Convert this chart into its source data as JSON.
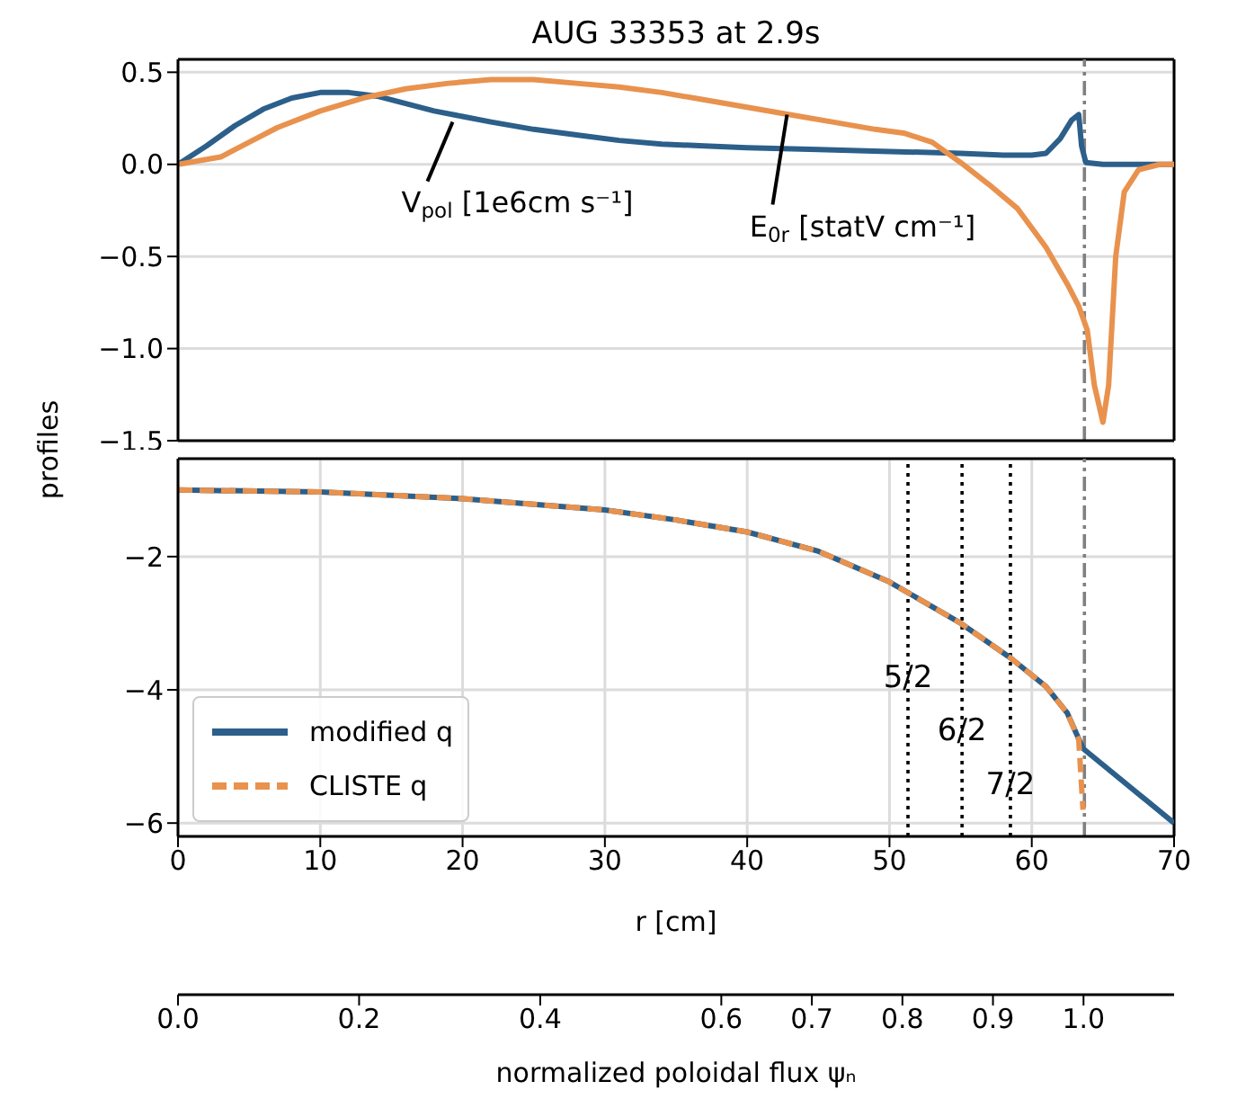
{
  "chart_data": [
    {
      "type": "line",
      "title": "AUG 33353 at 2.9s",
      "ylabel": "profiles",
      "xlim": [
        0,
        70
      ],
      "xticks": [
        0,
        10,
        20,
        30,
        40,
        50,
        60,
        70
      ],
      "ylim": [
        -1.5,
        0.57
      ],
      "yticks": [
        {
          "value": -1.5,
          "label": "−1.5"
        },
        {
          "value": -1,
          "label": "−1.0"
        },
        {
          "value": -0.5,
          "label": "−0.5"
        },
        {
          "value": 0,
          "label": "0.0"
        },
        {
          "value": 0.5,
          "label": "0.5"
        }
      ],
      "tick_labels": "y",
      "grid": true,
      "series": [
        {
          "color": "#2c5f8a",
          "x": [
            0,
            2,
            4,
            6,
            8,
            10,
            12,
            14,
            16,
            18,
            20,
            22,
            25,
            28,
            31,
            34,
            37,
            40,
            45,
            50,
            55,
            58,
            60,
            61,
            62,
            62.8,
            63.3,
            63.5,
            63.8,
            65,
            70
          ],
          "values": [
            0,
            0.1,
            0.21,
            0.3,
            0.36,
            0.39,
            0.39,
            0.37,
            0.33,
            0.29,
            0.26,
            0.23,
            0.19,
            0.16,
            0.13,
            0.11,
            0.1,
            0.09,
            0.08,
            0.07,
            0.06,
            0.05,
            0.05,
            0.06,
            0.14,
            0.24,
            0.27,
            0.1,
            0.01,
            0,
            0
          ]
        },
        {
          "color": "#e8924e",
          "x": [
            0,
            3,
            5,
            7,
            10,
            13,
            16,
            19,
            22,
            25,
            28,
            31,
            34,
            37,
            40,
            43,
            46,
            49,
            51,
            53,
            55,
            57,
            59,
            61,
            62.5,
            63.3,
            63.9,
            64.4,
            65,
            65.4,
            65.9,
            66.5,
            67.5,
            69,
            70
          ],
          "values": [
            0,
            0.04,
            0.12,
            0.2,
            0.29,
            0.36,
            0.41,
            0.44,
            0.46,
            0.46,
            0.44,
            0.42,
            0.39,
            0.35,
            0.31,
            0.27,
            0.23,
            0.19,
            0.17,
            0.12,
            0.01,
            -0.11,
            -0.24,
            -0.45,
            -0.65,
            -0.77,
            -0.9,
            -1.2,
            -1.4,
            -1.2,
            -0.5,
            -0.15,
            -0.03,
            0,
            0
          ]
        }
      ],
      "annotations": [
        {
          "text": "V$_{pol}$ [1e6cm s⁻¹]",
          "x": 19.3,
          "y": 0.23
        },
        {
          "text": "E$_{0r}$ [statV cm⁻¹]",
          "x": 42.8,
          "y": 0.27
        }
      ],
      "ref_lines": [
        {
          "axis": "x",
          "value": 63.7,
          "color": "#808080",
          "line_style": "dashed"
        }
      ]
    },
    {
      "type": "line",
      "xlabel": "r  [cm]",
      "xlim": [
        0,
        70
      ],
      "xticks": [
        0,
        10,
        20,
        30,
        40,
        50,
        60,
        70
      ],
      "ylim": [
        -6.2,
        -0.53
      ],
      "yticks": [
        {
          "value": -2,
          "label": "−2"
        },
        {
          "value": -4,
          "label": "−4"
        },
        {
          "value": -6,
          "label": "−6"
        }
      ],
      "grid": true,
      "legend": "bottom left",
      "x2label": "normalized poloidal flux ψₙ",
      "x2lim": [
        0,
        1.1
      ],
      "x2ticks": [
        {
          "value": 0,
          "label": "0.0"
        },
        {
          "value": 0.2,
          "label": "0.2"
        },
        {
          "value": 0.4,
          "label": "0.4"
        },
        {
          "value": 0.6,
          "label": "0.6"
        },
        {
          "value": 0.7,
          "label": "0.7"
        },
        {
          "value": 0.8,
          "label": "0.8"
        },
        {
          "value": 0.9,
          "label": "0.9"
        },
        {
          "value": 1,
          "label": "1.0"
        }
      ],
      "series": [
        {
          "name": "modified q",
          "color": "#2c5f8a",
          "line_style": "solid",
          "x": [
            0,
            10,
            20,
            30,
            35,
            40,
            45,
            50,
            55,
            58.5,
            61,
            62.5,
            63.6,
            70
          ],
          "values": [
            -1,
            -1.03,
            -1.13,
            -1.3,
            -1.45,
            -1.63,
            -1.92,
            -2.38,
            -3,
            -3.52,
            -3.95,
            -4.35,
            -4.88,
            -6
          ]
        },
        {
          "name": "CLISTE q",
          "color": "#e8924e",
          "line_style": "dashed",
          "x": [
            0,
            10,
            20,
            30,
            35,
            40,
            45,
            50,
            55,
            58.5,
            61,
            62.5,
            63.3,
            63.6
          ],
          "values": [
            -1,
            -1.03,
            -1.13,
            -1.3,
            -1.45,
            -1.63,
            -1.92,
            -2.38,
            -3,
            -3.52,
            -3.95,
            -4.35,
            -4.75,
            -5.8
          ]
        }
      ],
      "annotations": [
        {
          "text": "5/2",
          "x": 51.3,
          "y": -3.8
        },
        {
          "text": "6/2",
          "x": 55.1,
          "y": -4.6
        },
        {
          "text": "7/2",
          "x": 58.5,
          "y": -5.4
        }
      ],
      "ref_lines": [
        {
          "axis": "x",
          "value": 51.3,
          "color": "#000000",
          "line_style": "dotted"
        },
        {
          "axis": "x",
          "value": 55.1,
          "color": "#000000",
          "line_style": "dotted"
        },
        {
          "axis": "x",
          "value": 58.5,
          "color": "#000000",
          "line_style": "dotted"
        },
        {
          "axis": "x",
          "value": 63.7,
          "color": "#808080",
          "line_style": "dashed"
        }
      ]
    }
  ]
}
